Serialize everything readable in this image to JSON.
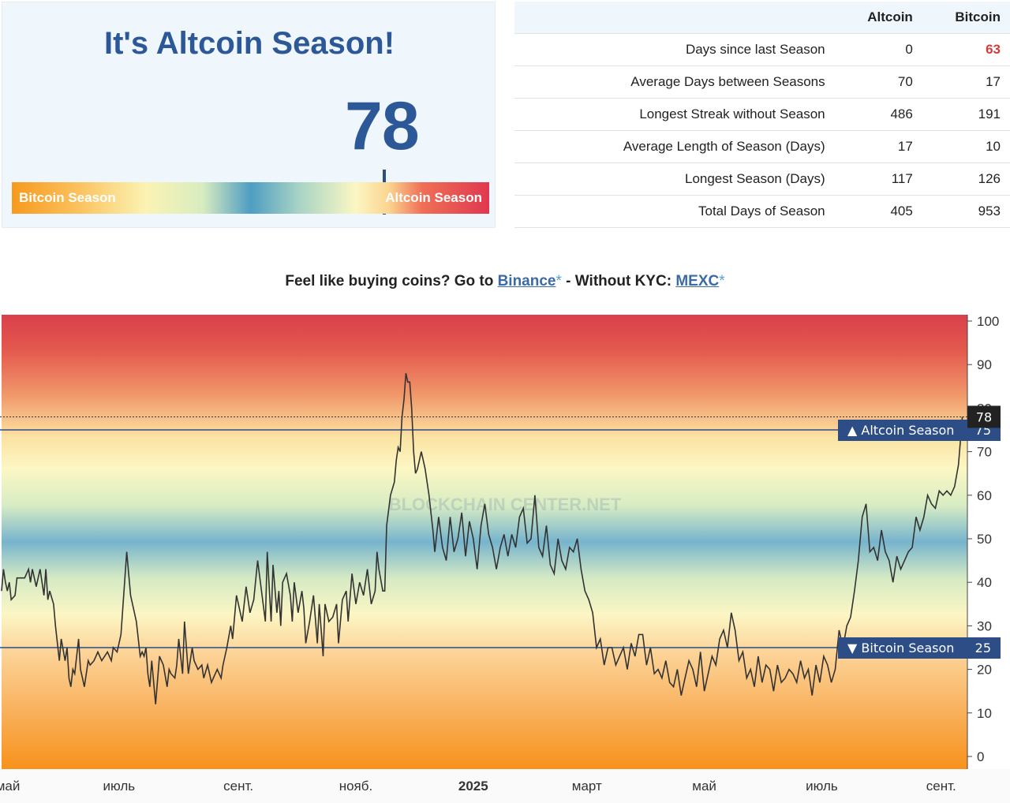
{
  "panel": {
    "title": "It's Altcoin Season!",
    "index_value": "78",
    "bar_label_left": "Bitcoin Season",
    "bar_label_right": "Altcoin Season",
    "marker_value": 78
  },
  "stats": {
    "headers": [
      "",
      "Altcoin",
      "Bitcoin"
    ],
    "rows": [
      {
        "metric": "Days since last Season",
        "altcoin": "0",
        "bitcoin": "63",
        "bitcoin_highlight": true
      },
      {
        "metric": "Average Days between Seasons",
        "altcoin": "70",
        "bitcoin": "17",
        "bitcoin_highlight": false
      },
      {
        "metric": "Longest Streak without Season",
        "altcoin": "486",
        "bitcoin": "191",
        "bitcoin_highlight": false
      },
      {
        "metric": "Average Length of Season (Days)",
        "altcoin": "17",
        "bitcoin": "10",
        "bitcoin_highlight": false
      },
      {
        "metric": "Longest Season (Days)",
        "altcoin": "117",
        "bitcoin": "126",
        "bitcoin_highlight": false
      },
      {
        "metric": "Total Days of Season",
        "altcoin": "405",
        "bitcoin": "953",
        "bitcoin_highlight": false
      }
    ]
  },
  "promo": {
    "prefix": "Feel like buying coins? Go to ",
    "link1": "Binance",
    "star": "*",
    "middle": " - Without KYC: ",
    "link2": "MEXC"
  },
  "colors": {
    "accent": "#2d5898",
    "altcoin_red": "#d8404d",
    "bitcoin_orange": "#f7941d",
    "line": "#333333",
    "badge": "#2d4d86"
  },
  "chart_data": {
    "type": "line",
    "ylim": [
      0,
      100
    ],
    "yticks": [
      0,
      10,
      20,
      30,
      40,
      50,
      60,
      70,
      80,
      90,
      100
    ],
    "xticks": [
      {
        "label": "май",
        "day": 0,
        "bold": false
      },
      {
        "label": "июль",
        "day": 61,
        "bold": false
      },
      {
        "label": "сент.",
        "day": 123,
        "bold": false
      },
      {
        "label": "нояб.",
        "day": 184,
        "bold": false
      },
      {
        "label": "2025",
        "day": 245,
        "bold": true
      },
      {
        "label": "март",
        "day": 304,
        "bold": false
      },
      {
        "label": "май",
        "day": 365,
        "bold": false
      },
      {
        "label": "июль",
        "day": 426,
        "bold": false
      },
      {
        "label": "сент.",
        "day": 488,
        "bold": false
      }
    ],
    "thresholds": [
      {
        "label": "▲ Altcoin Season",
        "value": 75
      },
      {
        "label": "▼ Bitcoin Season",
        "value": 25
      }
    ],
    "current": {
      "value": 78,
      "label": "78"
    },
    "watermark": "BLOCKCHAIN CENTER.NET",
    "series": [
      {
        "x": [
          0,
          1,
          2,
          3,
          4,
          5,
          7,
          8,
          10,
          12,
          14,
          15,
          16,
          17,
          18,
          20,
          22,
          23,
          24,
          25,
          27,
          28,
          30,
          31,
          33,
          34,
          35,
          36,
          37,
          38,
          40,
          41,
          42,
          43,
          45,
          46,
          48,
          50,
          52,
          55,
          57,
          58,
          60,
          62,
          65,
          67,
          70,
          72,
          73,
          74,
          75,
          76,
          77,
          78,
          80,
          82,
          84,
          86,
          87,
          88,
          90,
          91,
          92,
          94,
          95,
          97,
          99,
          100,
          102,
          104,
          105,
          107,
          109,
          110,
          112,
          114,
          115,
          117,
          119,
          120,
          122,
          125,
          127,
          129,
          131,
          133,
          135,
          137,
          138,
          140,
          141,
          143,
          144,
          145,
          146,
          148,
          150,
          151,
          152,
          154,
          156,
          157,
          158,
          160,
          162,
          164,
          165,
          167,
          168,
          170,
          172,
          174,
          175,
          177,
          179,
          180,
          182,
          184,
          186,
          188,
          190,
          192,
          194,
          195,
          196,
          198,
          199,
          200,
          202,
          204,
          205,
          206,
          207,
          208,
          209,
          210,
          211,
          212,
          213,
          214,
          215,
          216,
          217,
          218,
          219,
          220,
          222,
          224,
          225,
          227,
          229,
          231,
          233,
          235,
          237,
          239,
          241,
          243,
          245,
          247,
          249,
          251,
          253,
          255,
          257,
          259,
          261,
          263,
          265,
          267,
          269,
          271,
          273,
          275,
          277,
          279,
          281,
          283,
          285,
          287,
          289,
          291,
          293,
          295,
          297,
          299,
          301,
          303,
          305,
          307,
          309,
          311,
          313,
          315,
          317,
          319,
          321,
          323,
          325,
          327,
          329,
          331,
          333,
          335,
          337,
          339,
          341,
          343,
          345,
          347,
          349,
          351,
          353,
          355,
          357,
          359,
          361,
          363,
          365,
          367,
          369,
          371,
          373,
          375,
          377,
          379,
          381,
          383,
          385,
          387,
          389,
          391,
          393,
          395,
          397,
          399,
          401,
          403,
          405,
          407,
          409,
          411,
          413,
          415,
          417,
          419,
          421,
          423,
          425,
          427,
          429,
          431,
          433,
          435,
          437,
          439,
          441,
          443,
          445,
          447,
          449,
          451,
          453,
          455,
          457,
          459,
          461,
          463,
          465,
          467,
          469,
          471,
          473,
          475,
          477,
          479,
          481,
          483,
          485,
          487,
          489,
          491,
          493,
          495,
          497,
          499
        ],
        "y": [
          38,
          43,
          40,
          38,
          40,
          36,
          37,
          41,
          41,
          41,
          43,
          40,
          43,
          41,
          39,
          43,
          37,
          43,
          36,
          38,
          35,
          30,
          22,
          27,
          22,
          25,
          18,
          16,
          20,
          19,
          27,
          20,
          18,
          16,
          22,
          21,
          22,
          24,
          22,
          24,
          22,
          25,
          24,
          28,
          47,
          37,
          31,
          23,
          24,
          23,
          25,
          19,
          16,
          22,
          12,
          23,
          21,
          16,
          20,
          19,
          18,
          21,
          27,
          19,
          31,
          19,
          25,
          22,
          20,
          21,
          18,
          21,
          17,
          18,
          20,
          18,
          21,
          25,
          30,
          27,
          37,
          31,
          39,
          33,
          36,
          45,
          38,
          31,
          47,
          31,
          44,
          33,
          38,
          30,
          40,
          42,
          37,
          31,
          40,
          33,
          38,
          34,
          26,
          31,
          37,
          26,
          35,
          23,
          35,
          31,
          32,
          35,
          26,
          36,
          38,
          31,
          42,
          35,
          40,
          37,
          43,
          35,
          38,
          47,
          43,
          38,
          38,
          53,
          60,
          63,
          68,
          71,
          70,
          78,
          82,
          88,
          86,
          86,
          80,
          70,
          65,
          66,
          68,
          70,
          68,
          66,
          60,
          52,
          47,
          55,
          48,
          45,
          55,
          47,
          50,
          56,
          46,
          54,
          50,
          43,
          53,
          58,
          51,
          48,
          43,
          48,
          51,
          46,
          51,
          48,
          55,
          57,
          49,
          50,
          60,
          48,
          46,
          53,
          44,
          42,
          50,
          45,
          43,
          48,
          47,
          50,
          43,
          38,
          36,
          33,
          25,
          27,
          21,
          25,
          25,
          21,
          23,
          25,
          20,
          26,
          23,
          28,
          28,
          21,
          25,
          19,
          20,
          18,
          22,
          17,
          16,
          20,
          14,
          18,
          22,
          20,
          16,
          24,
          15,
          19,
          23,
          21,
          27,
          29,
          25,
          33,
          29,
          22,
          24,
          18,
          20,
          16,
          23,
          17,
          21,
          20,
          15,
          21,
          17,
          18,
          20,
          19,
          17,
          22,
          18,
          20,
          14,
          21,
          17,
          23,
          21,
          17,
          20,
          29,
          25,
          30,
          32,
          38,
          45,
          55,
          58,
          47,
          48,
          45,
          52,
          47,
          45,
          40,
          46,
          43,
          45,
          47,
          48,
          55,
          52,
          55,
          60,
          58,
          57,
          61,
          60,
          61,
          60,
          62,
          67,
          78
        ]
      }
    ]
  }
}
